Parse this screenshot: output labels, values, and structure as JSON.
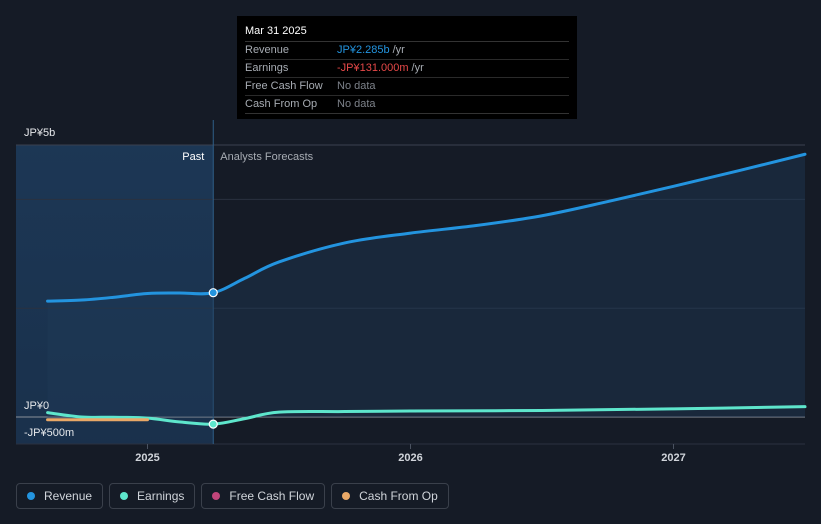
{
  "tooltip": {
    "date": "Mar 31 2025",
    "rows": [
      {
        "label": "Revenue",
        "value": "JP¥2.285b",
        "unit": "/yr",
        "color": "#2394df"
      },
      {
        "label": "Earnings",
        "value": "-JP¥131.000m",
        "unit": "/yr",
        "color": "#e64848"
      },
      {
        "label": "Free Cash Flow",
        "value": "No data",
        "unit": "",
        "color": "#7d828a"
      },
      {
        "label": "Cash From Op",
        "value": "No data",
        "unit": "",
        "color": "#7d828a"
      }
    ]
  },
  "labels": {
    "past": "Past",
    "forecast": "Analysts Forecasts"
  },
  "legend": [
    {
      "label": "Revenue",
      "color": "#2394df"
    },
    {
      "label": "Earnings",
      "color": "#5ee6cc"
    },
    {
      "label": "Free Cash Flow",
      "color": "#c1457a"
    },
    {
      "label": "Cash From Op",
      "color": "#e9a867"
    }
  ],
  "chart_data": {
    "type": "line",
    "y_tick_labels": [
      "JP¥5b",
      "JP¥0",
      "-JP¥500m"
    ],
    "x_tick_labels": [
      "2025",
      "2026",
      "2027"
    ],
    "ylim": [
      -500000000,
      5000000000
    ],
    "xlim": [
      2024.5,
      2027.5
    ],
    "divider_x": 2025.25,
    "series": [
      {
        "name": "Revenue",
        "color": "#2394df",
        "points": [
          [
            2024.62,
            2130000000.0
          ],
          [
            2024.75,
            2150000000.0
          ],
          [
            2024.87,
            2200000000.0
          ],
          [
            2025.0,
            2270000000.0
          ],
          [
            2025.12,
            2280000000.0
          ],
          [
            2025.25,
            2285000000.0
          ],
          [
            2025.37,
            2550000000.0
          ],
          [
            2025.5,
            2850000000.0
          ],
          [
            2025.75,
            3200000000.0
          ],
          [
            2026.0,
            3380000000.0
          ],
          [
            2026.25,
            3520000000.0
          ],
          [
            2026.5,
            3700000000.0
          ],
          [
            2026.75,
            3960000000.0
          ],
          [
            2027.0,
            4240000000.0
          ],
          [
            2027.25,
            4530000000.0
          ],
          [
            2027.5,
            4830000000.0
          ]
        ]
      },
      {
        "name": "Earnings",
        "color": "#5ee6cc",
        "points": [
          [
            2024.62,
            80000000.0
          ],
          [
            2024.75,
            0.0
          ],
          [
            2024.87,
            -5000000.0
          ],
          [
            2025.0,
            -20000000.0
          ],
          [
            2025.12,
            -90000000.0
          ],
          [
            2025.25,
            -131000000.0
          ],
          [
            2025.37,
            -30000000.0
          ],
          [
            2025.5,
            90000000.0
          ],
          [
            2025.75,
            100000000.0
          ],
          [
            2026.0,
            110000000.0
          ],
          [
            2026.5,
            120000000.0
          ],
          [
            2027.0,
            150000000.0
          ],
          [
            2027.5,
            190000000.0
          ]
        ]
      },
      {
        "name": "Cash From Op",
        "color": "#e9a867",
        "points": [
          [
            2024.62,
            -50000000.0
          ],
          [
            2025.0,
            -50000000.0
          ]
        ]
      }
    ],
    "highlight_points": [
      {
        "series": "Revenue",
        "x": 2025.25,
        "y": 2285000000.0
      },
      {
        "series": "Earnings",
        "x": 2025.25,
        "y": -131000000.0
      }
    ]
  }
}
